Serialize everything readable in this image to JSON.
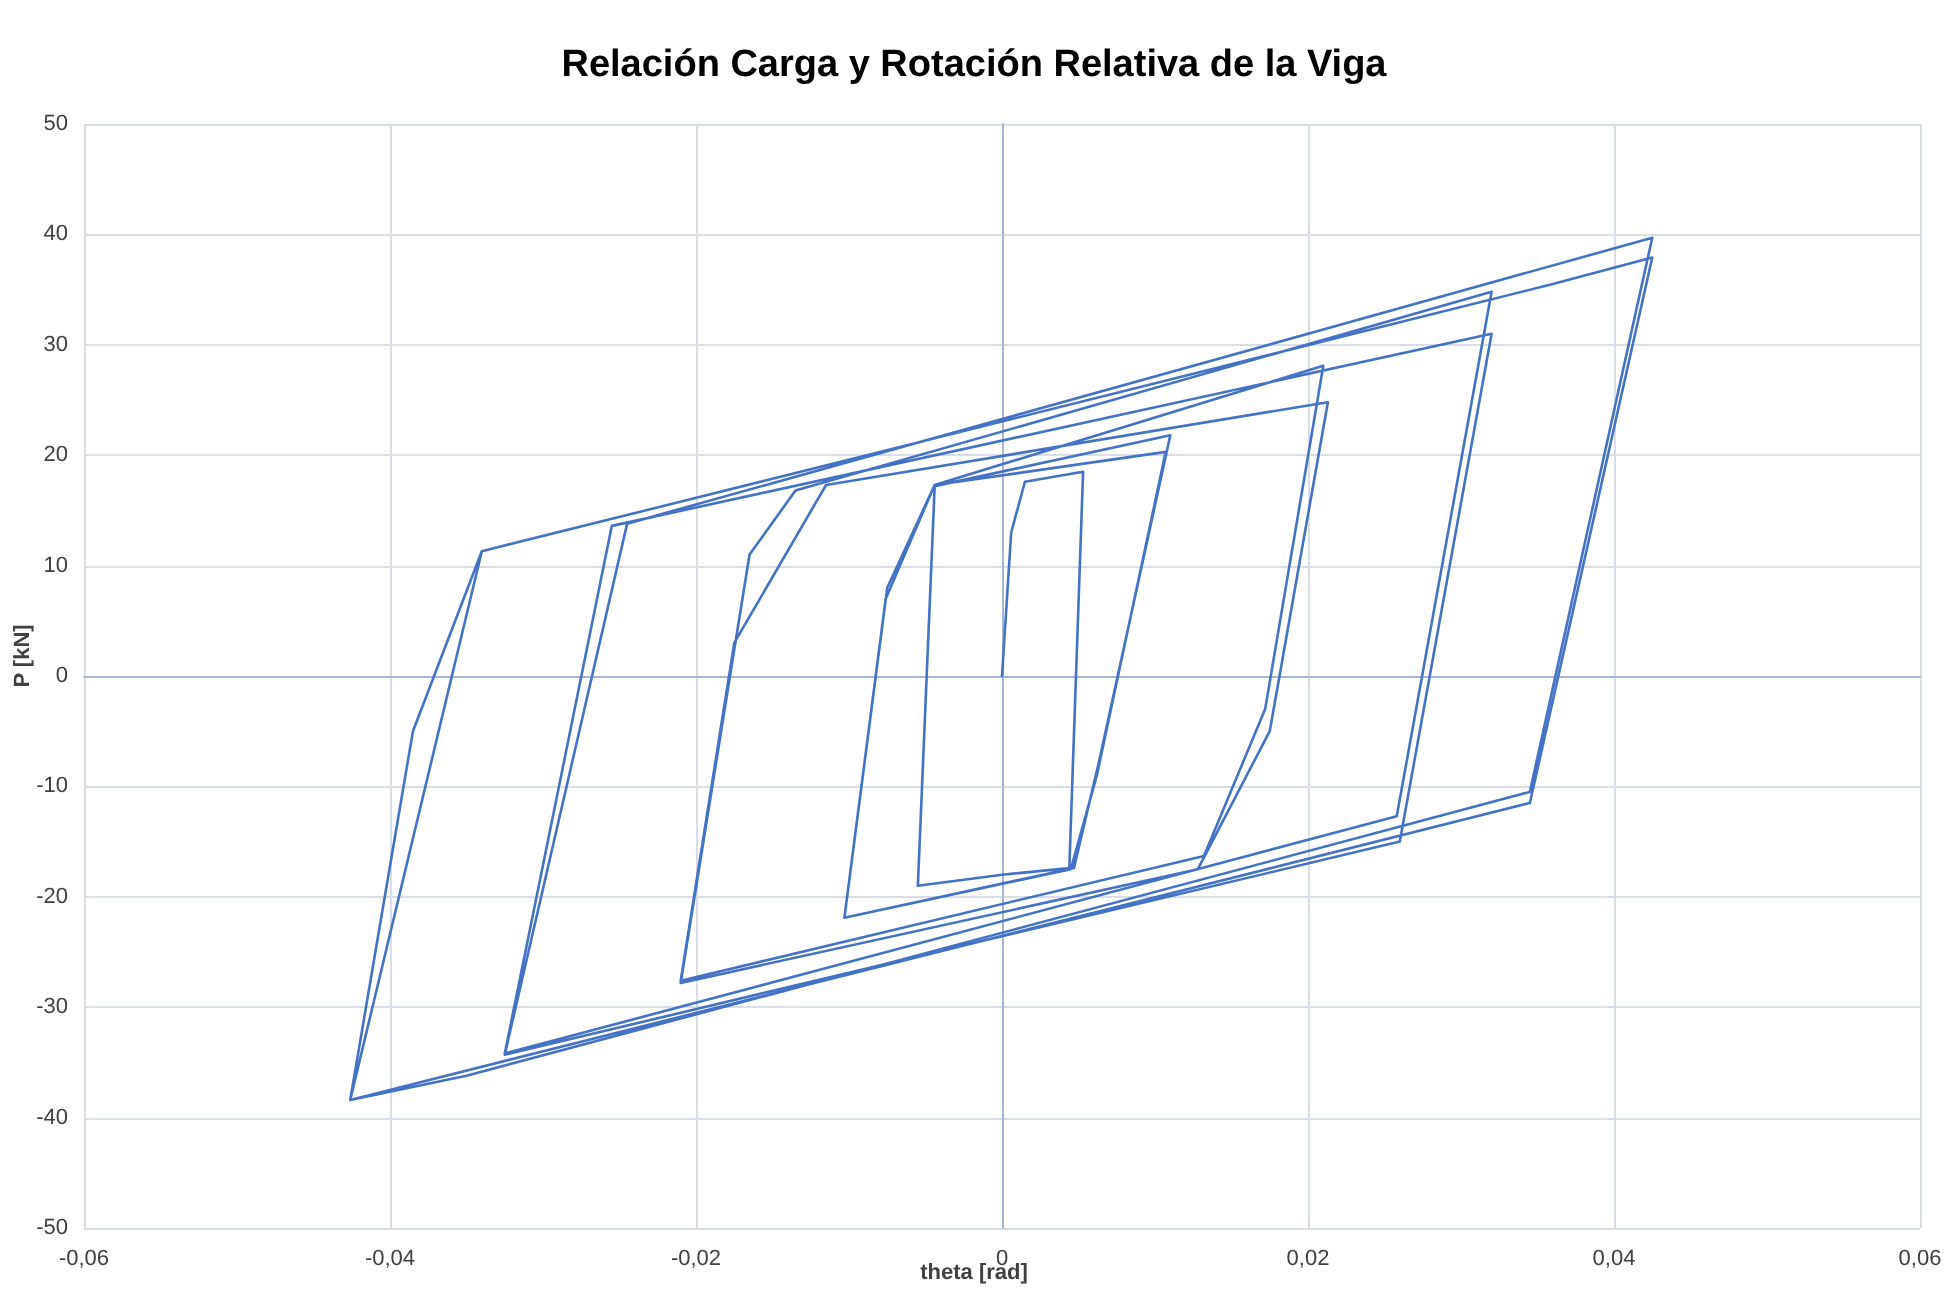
{
  "chart_data": {
    "type": "line",
    "title": "Relación Carga y Rotación Relativa de la Viga",
    "xlabel": "theta [rad]",
    "ylabel": "P [kN]",
    "xlim": [
      -0.06,
      0.06
    ],
    "xticks": [
      {
        "value": -0.06,
        "label": "-0,06"
      },
      {
        "value": -0.04,
        "label": "-0,04"
      },
      {
        "value": -0.02,
        "label": "-0,02"
      },
      0,
      {
        "value": 0.02,
        "label": "0,02"
      },
      {
        "value": 0.04,
        "label": "0,04"
      },
      {
        "value": 0.06,
        "label": "0,06"
      }
    ],
    "ylim": [
      -50,
      50
    ],
    "yticks": [
      -50,
      -40,
      -30,
      -20,
      -10,
      0,
      10,
      20,
      30,
      40,
      50
    ],
    "grid": true,
    "marker": "none",
    "line_style": "solid",
    "series": [
      {
        "color": "#4472c4",
        "x": [
          0,
          0.0006,
          0.0015,
          0.0053,
          0.0044,
          0,
          -0.0055,
          -0.0044,
          0.011,
          0.0063,
          0.0047,
          -0.0103,
          -0.0075,
          -0.0044,
          0.0107,
          0.0062,
          0.0045,
          -0.0103,
          -0.0076,
          -0.0044,
          0.021,
          0.0172,
          0.0132,
          -0.021,
          -0.0175,
          -0.0115,
          0.0213,
          0.0175,
          0.0128,
          -0.021,
          -0.0165,
          -0.0135,
          0.032,
          0.0258,
          -0.0325,
          -0.0255,
          0.032,
          0.026,
          -0.0325,
          -0.0245,
          0.0425,
          0.0345,
          -0.035,
          -0.0426,
          -0.0385,
          -0.034,
          0.036,
          0.0425,
          0.0345,
          -0.0426,
          -0.034
        ],
        "values": [
          0,
          13,
          17.6,
          18.5,
          -17.4,
          -18,
          -19,
          17.2,
          21.8,
          -8,
          -17.4,
          -21.9,
          8,
          17.3,
          20.3,
          -9,
          -17.5,
          -21.9,
          7,
          17.3,
          28.1,
          -3,
          -16.3,
          -27.6,
          3,
          17.3,
          24.8,
          -5,
          -17.5,
          -27.8,
          11,
          16.8,
          34.8,
          -12.7,
          -34.2,
          13.6,
          31,
          -15,
          -34.3,
          13.8,
          39.7,
          -10.5,
          -36.2,
          -38.4,
          -5,
          11.3,
          35.5,
          37.9,
          -11.5,
          -38.4,
          11.3
        ]
      }
    ]
  }
}
